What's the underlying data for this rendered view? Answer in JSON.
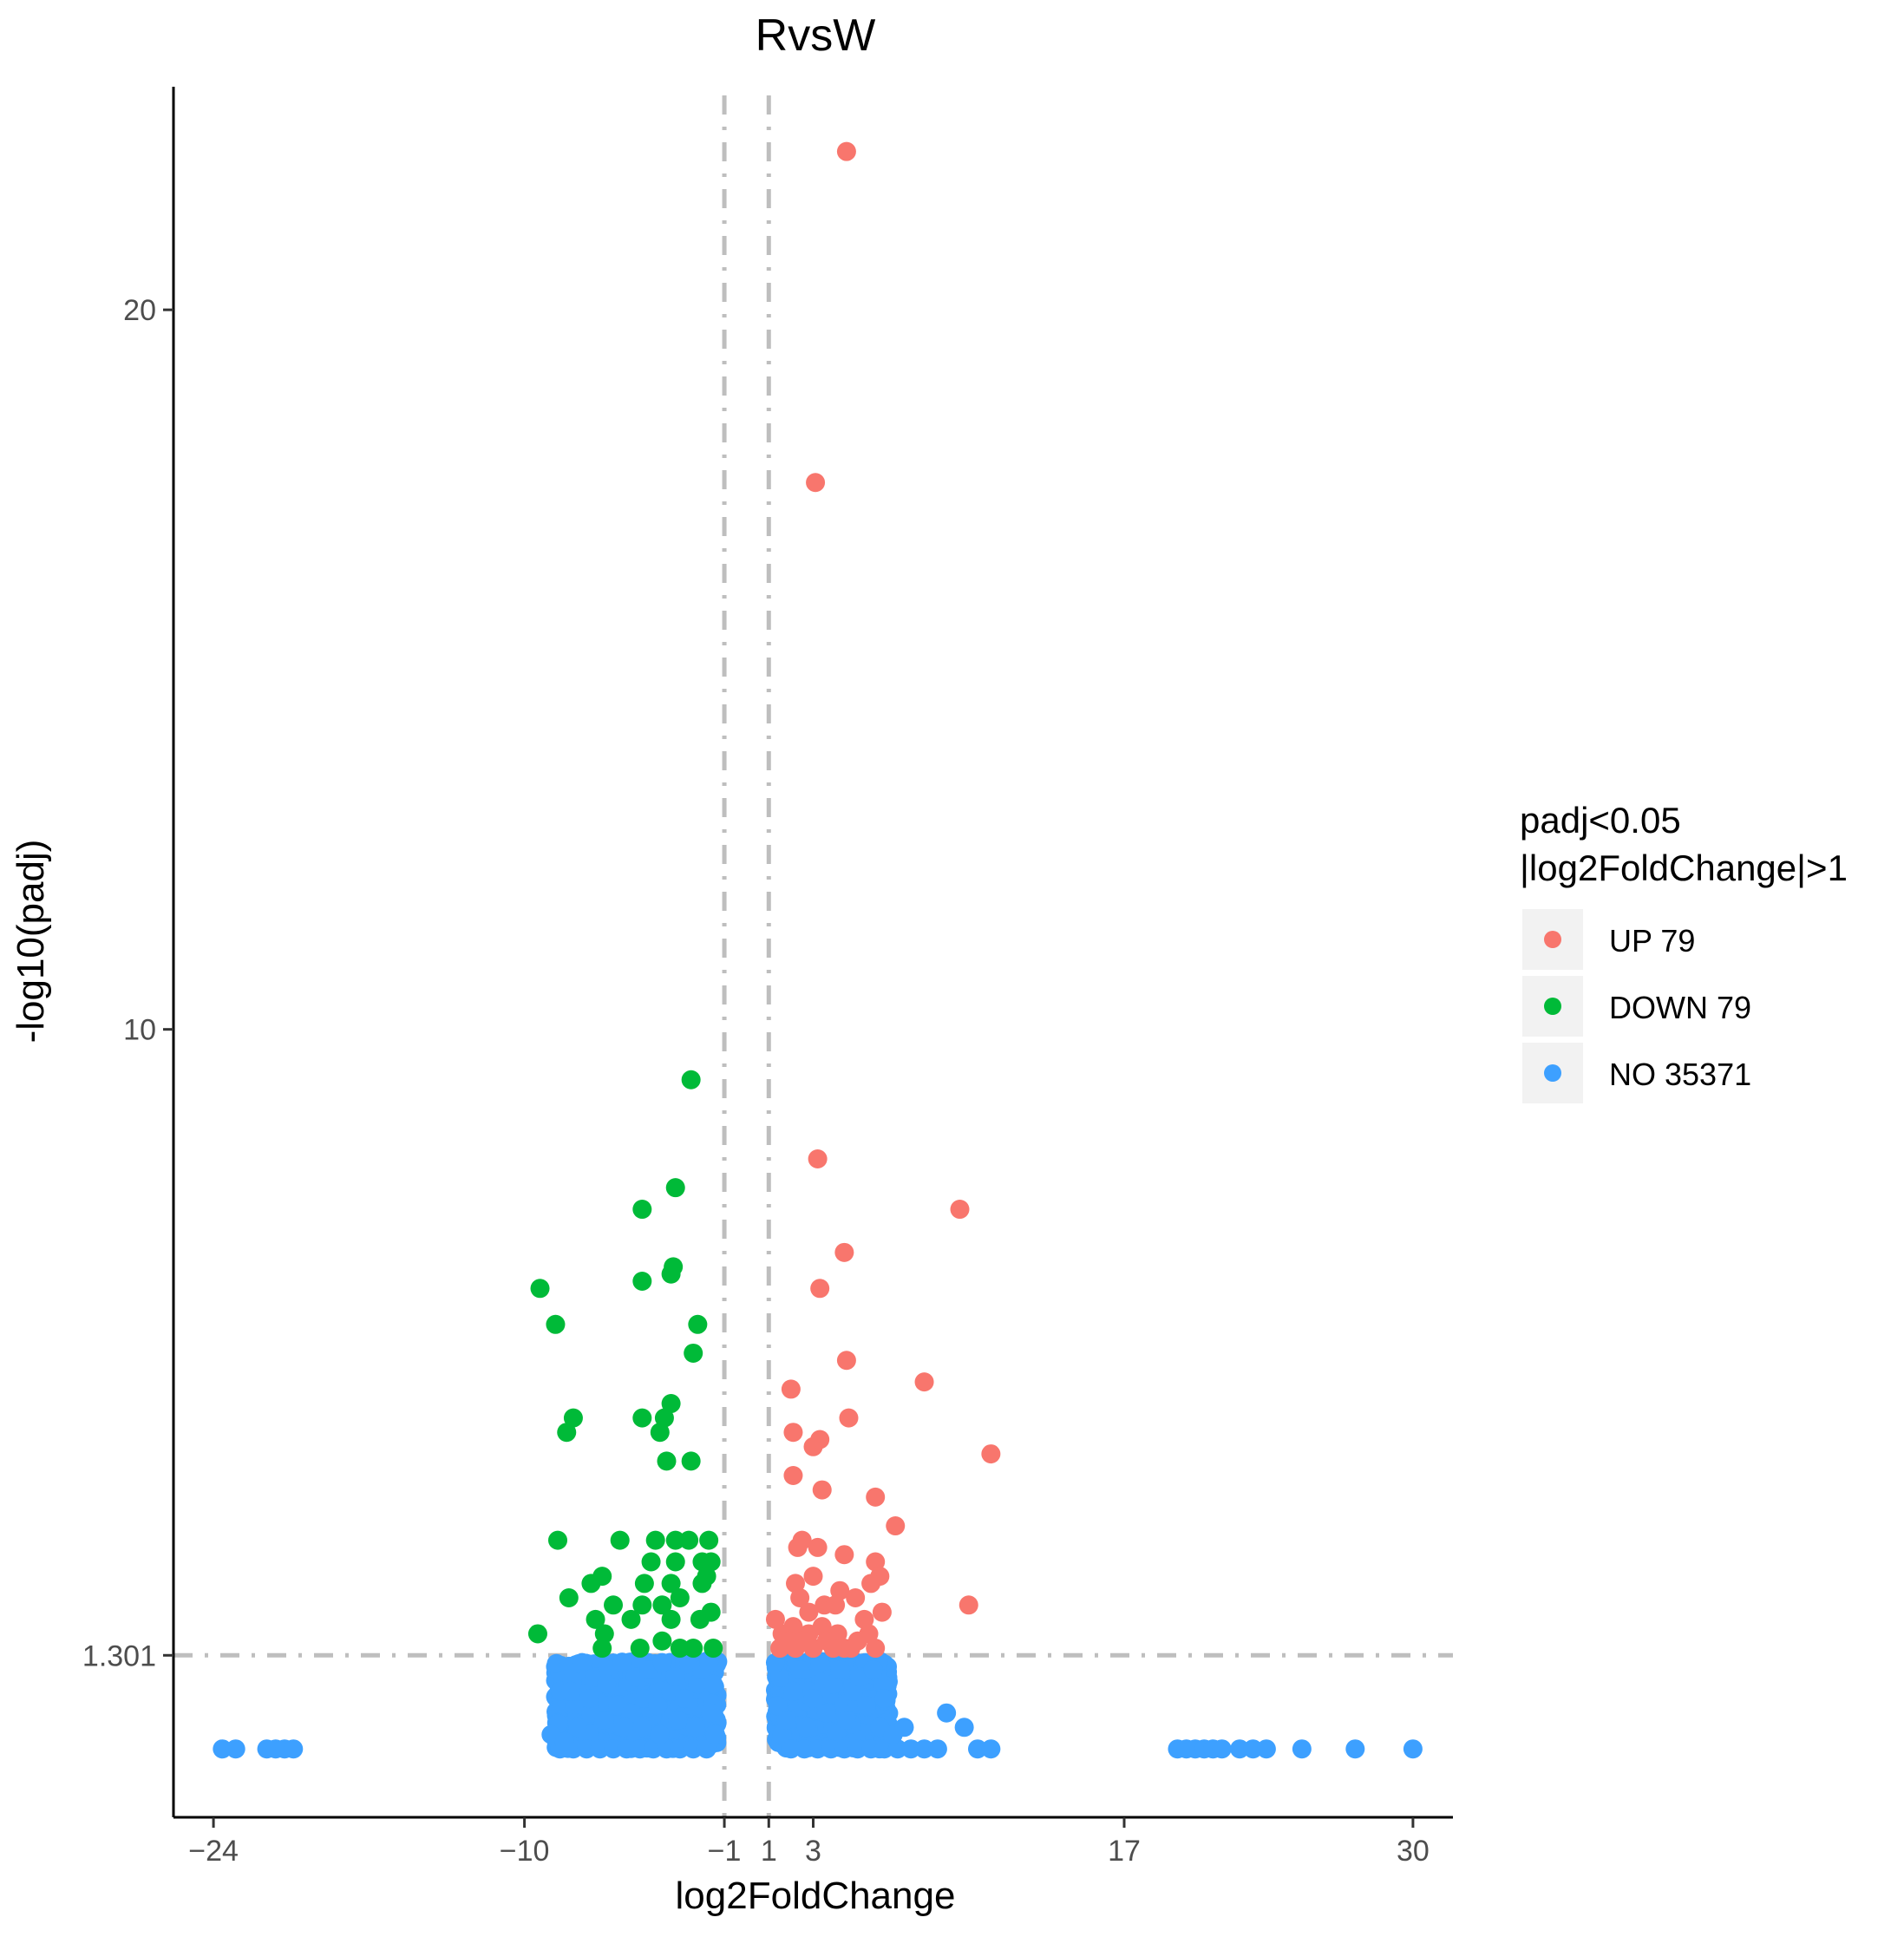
{
  "chart_data": {
    "type": "scatter",
    "title": "RvsW",
    "xlabel": "log2FoldChange",
    "ylabel": "-log10(padj)",
    "xlim": [
      -25.8,
      31.8
    ],
    "ylim": [
      -0.95,
      23.1
    ],
    "x_ticks": [
      -24,
      -10,
      -1,
      1,
      3,
      17,
      30
    ],
    "x_tick_labels": [
      "−24",
      "−10",
      "−1",
      "1",
      "3",
      "17",
      "30"
    ],
    "y_ticks": [
      1.301,
      10,
      20
    ],
    "y_tick_labels": [
      "1.301",
      "10",
      "20"
    ],
    "threshold_lines": {
      "x": [
        -1,
        1
      ],
      "y": 1.301
    },
    "legend": {
      "title_line1": "padj<0.05",
      "title_line2": "|log2FoldChange|>1",
      "position": "right",
      "entries": [
        {
          "label": "UP 79",
          "color": "#F8766D"
        },
        {
          "label": "DOWN 79",
          "color": "#00BA38"
        },
        {
          "label": "NO 35371",
          "color": "#3DA0FF"
        }
      ]
    },
    "colors": {
      "UP": "#F8766D",
      "DOWN": "#00BA38",
      "NO": "#3DA0FF",
      "threshold": "#BEBEBE"
    },
    "series": [
      {
        "name": "UP",
        "color": "#F8766D",
        "points": [
          [
            4.5,
            22.2
          ],
          [
            3.1,
            17.6
          ],
          [
            3.2,
            8.2
          ],
          [
            9.6,
            7.5
          ],
          [
            4.4,
            6.9
          ],
          [
            3.3,
            6.4
          ],
          [
            4.5,
            5.4
          ],
          [
            8.0,
            5.1
          ],
          [
            2.0,
            5.0
          ],
          [
            4.6,
            4.6
          ],
          [
            2.1,
            4.4
          ],
          [
            11.0,
            4.1
          ],
          [
            3.0,
            4.2
          ],
          [
            3.3,
            4.3
          ],
          [
            2.1,
            3.8
          ],
          [
            3.4,
            3.6
          ],
          [
            5.8,
            3.5
          ],
          [
            6.7,
            3.1
          ],
          [
            2.3,
            2.8
          ],
          [
            2.5,
            2.9
          ],
          [
            3.2,
            2.8
          ],
          [
            4.4,
            2.7
          ],
          [
            5.8,
            2.6
          ],
          [
            6.0,
            2.4
          ],
          [
            3.0,
            2.4
          ],
          [
            5.6,
            2.3
          ],
          [
            2.2,
            2.3
          ],
          [
            2.4,
            2.1
          ],
          [
            4.2,
            2.2
          ],
          [
            10.0,
            2.0
          ],
          [
            6.1,
            1.9
          ],
          [
            2.8,
            1.9
          ],
          [
            3.5,
            2.0
          ],
          [
            4.0,
            2.0
          ],
          [
            4.9,
            2.1
          ],
          [
            5.3,
            1.8
          ],
          [
            1.6,
            1.6
          ],
          [
            2.1,
            1.7
          ],
          [
            2.8,
            1.6
          ],
          [
            3.4,
            1.7
          ],
          [
            4.1,
            1.6
          ],
          [
            5.5,
            1.6
          ],
          [
            1.3,
            1.8
          ],
          [
            1.9,
            1.5
          ],
          [
            2.5,
            1.5
          ],
          [
            3.0,
            1.4
          ],
          [
            3.6,
            1.5
          ],
          [
            4.4,
            1.4
          ],
          [
            5.0,
            1.5
          ],
          [
            5.8,
            1.4
          ],
          [
            1.5,
            1.4
          ],
          [
            2.2,
            1.4
          ],
          [
            3.9,
            1.4
          ],
          [
            4.7,
            1.4
          ]
        ]
      },
      {
        "name": "DOWN",
        "color": "#00BA38",
        "points": [
          [
            -2.5,
            9.3
          ],
          [
            -3.2,
            7.8
          ],
          [
            -4.7,
            7.5
          ],
          [
            -3.3,
            6.7
          ],
          [
            -3.4,
            6.6
          ],
          [
            -4.7,
            6.5
          ],
          [
            -9.3,
            6.4
          ],
          [
            -8.6,
            5.9
          ],
          [
            -2.2,
            5.9
          ],
          [
            -2.4,
            5.5
          ],
          [
            -3.4,
            4.8
          ],
          [
            -3.7,
            4.6
          ],
          [
            -4.7,
            4.6
          ],
          [
            -7.8,
            4.6
          ],
          [
            -3.9,
            4.4
          ],
          [
            -8.1,
            4.4
          ],
          [
            -2.5,
            4.0
          ],
          [
            -3.6,
            4.0
          ],
          [
            -8.5,
            2.9
          ],
          [
            -5.7,
            2.9
          ],
          [
            -4.1,
            2.9
          ],
          [
            -3.2,
            2.9
          ],
          [
            -2.6,
            2.9
          ],
          [
            -1.7,
            2.9
          ],
          [
            -4.3,
            2.6
          ],
          [
            -3.2,
            2.6
          ],
          [
            -2.0,
            2.6
          ],
          [
            -1.6,
            2.6
          ],
          [
            -7.0,
            2.3
          ],
          [
            -6.5,
            2.4
          ],
          [
            -4.6,
            2.3
          ],
          [
            -3.4,
            2.3
          ],
          [
            -2.0,
            2.3
          ],
          [
            -1.8,
            2.4
          ],
          [
            -8.0,
            2.1
          ],
          [
            -6.0,
            2.0
          ],
          [
            -4.7,
            2.0
          ],
          [
            -3.8,
            2.0
          ],
          [
            -3.0,
            2.1
          ],
          [
            -1.6,
            1.9
          ],
          [
            -6.8,
            1.8
          ],
          [
            -5.2,
            1.8
          ],
          [
            -3.4,
            1.8
          ],
          [
            -2.1,
            1.8
          ],
          [
            -9.4,
            1.6
          ],
          [
            -6.4,
            1.6
          ],
          [
            -4.8,
            1.4
          ],
          [
            -3.0,
            1.4
          ],
          [
            -2.4,
            1.4
          ],
          [
            -1.5,
            1.4
          ],
          [
            -6.5,
            1.4
          ],
          [
            -3.8,
            1.5
          ]
        ]
      },
      {
        "name": "NO",
        "color": "#3DA0FF",
        "points": [
          [
            -23.6,
            0.0
          ],
          [
            -23.0,
            0.0
          ],
          [
            -21.6,
            0.0
          ],
          [
            -21.2,
            0.0
          ],
          [
            -20.8,
            0.0
          ],
          [
            -20.4,
            0.0
          ],
          [
            -8.4,
            0.0
          ],
          [
            -7.8,
            0.0
          ],
          [
            -7.2,
            0.0
          ],
          [
            -6.6,
            0.0
          ],
          [
            -6.0,
            0.0
          ],
          [
            -5.4,
            0.0
          ],
          [
            -4.8,
            0.0
          ],
          [
            -4.2,
            0.0
          ],
          [
            -3.6,
            0.0
          ],
          [
            -3.0,
            0.0
          ],
          [
            -2.4,
            0.0
          ],
          [
            -1.8,
            0.0
          ],
          [
            -8.8,
            0.2
          ],
          [
            -8.2,
            0.1
          ],
          [
            -7.6,
            0.3
          ],
          [
            -7.0,
            0.5
          ],
          [
            -6.4,
            0.4
          ],
          [
            -5.8,
            0.6
          ],
          [
            -5.2,
            0.5
          ],
          [
            -4.6,
            0.7
          ],
          [
            -4.0,
            0.6
          ],
          [
            -3.4,
            0.8
          ],
          [
            -2.8,
            0.7
          ],
          [
            -2.2,
            0.9
          ],
          [
            -7.4,
            1.2
          ],
          [
            -6.8,
            1.0
          ],
          [
            -6.2,
            1.1
          ],
          [
            -5.6,
            1.2
          ],
          [
            -5.0,
            1.0
          ],
          [
            -4.4,
            1.1
          ],
          [
            -3.8,
            1.2
          ],
          [
            -3.2,
            1.0
          ],
          [
            -2.6,
            1.2
          ],
          [
            -2.0,
            1.1
          ],
          [
            -1.6,
            0.5
          ],
          [
            -1.4,
            0.2
          ],
          [
            -7.9,
            0.8
          ],
          [
            -7.1,
            0.7
          ],
          [
            -6.3,
            0.9
          ],
          [
            -5.5,
            0.3
          ],
          [
            -4.7,
            0.3
          ],
          [
            -3.9,
            0.2
          ],
          [
            -3.1,
            0.4
          ],
          [
            -2.3,
            0.3
          ],
          [
            -1.7,
            1.2
          ],
          [
            -1.5,
            0.9
          ],
          [
            1.6,
            0.2
          ],
          [
            1.4,
            0.6
          ],
          [
            1.5,
            1.0
          ],
          [
            1.3,
            1.2
          ],
          [
            1.8,
            0.4
          ],
          [
            2.1,
            0.8
          ],
          [
            2.4,
            1.1
          ],
          [
            2.7,
            0.3
          ],
          [
            3.0,
            0.7
          ],
          [
            3.3,
            1.2
          ],
          [
            3.6,
            0.5
          ],
          [
            3.9,
            0.9
          ],
          [
            4.2,
            1.1
          ],
          [
            4.5,
            0.4
          ],
          [
            4.8,
            0.8
          ],
          [
            5.1,
            1.0
          ],
          [
            5.4,
            0.6
          ],
          [
            5.7,
            1.1
          ],
          [
            6.0,
            0.3
          ],
          [
            6.2,
            0.7
          ],
          [
            2.0,
            0.0
          ],
          [
            2.6,
            0.0
          ],
          [
            3.2,
            0.0
          ],
          [
            3.8,
            0.0
          ],
          [
            4.4,
            0.0
          ],
          [
            5.0,
            0.0
          ],
          [
            5.6,
            0.0
          ],
          [
            6.2,
            0.0
          ],
          [
            6.8,
            0.0
          ],
          [
            7.4,
            0.0
          ],
          [
            8.0,
            0.0
          ],
          [
            8.6,
            0.0
          ],
          [
            6.6,
            0.2
          ],
          [
            7.1,
            0.3
          ],
          [
            9.0,
            0.5
          ],
          [
            9.8,
            0.3
          ],
          [
            10.4,
            0.0
          ],
          [
            11.0,
            0.0
          ],
          [
            19.4,
            0.0
          ],
          [
            19.8,
            0.0
          ],
          [
            20.2,
            0.0
          ],
          [
            20.6,
            0.0
          ],
          [
            21.0,
            0.0
          ],
          [
            21.4,
            0.0
          ],
          [
            22.2,
            0.0
          ],
          [
            22.8,
            0.0
          ],
          [
            23.4,
            0.0
          ],
          [
            25.0,
            0.0
          ],
          [
            27.4,
            0.0
          ],
          [
            30.0,
            0.0
          ]
        ]
      }
    ]
  }
}
